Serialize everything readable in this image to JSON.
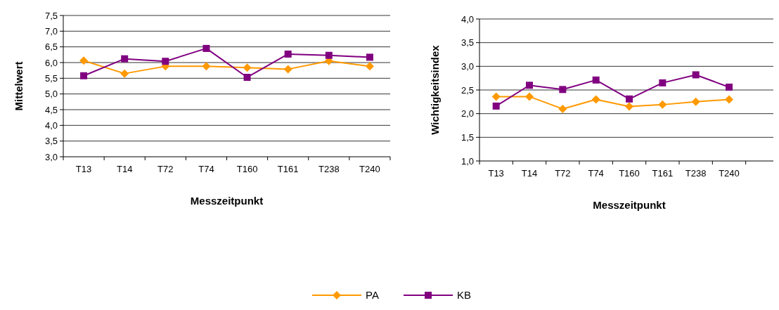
{
  "chart_data": [
    {
      "type": "line",
      "xlabel": "Messzeitpunkt",
      "ylabel": "Mittelwert",
      "categories": [
        "T13",
        "T14",
        "T72",
        "T74",
        "T160",
        "T161",
        "T238",
        "T240"
      ],
      "series": [
        {
          "name": "PA",
          "color": "#ff9900",
          "marker": "diamond",
          "values": [
            6.06,
            5.65,
            5.88,
            5.88,
            5.84,
            5.79,
            6.05,
            5.88
          ]
        },
        {
          "name": "KB",
          "color": "#800080",
          "marker": "square",
          "values": [
            5.58,
            6.12,
            6.04,
            6.45,
            5.53,
            6.27,
            6.23,
            6.17
          ]
        }
      ],
      "ylim": [
        3,
        7.5
      ],
      "yticks": [
        {
          "value": 3,
          "label": "3,0"
        },
        {
          "value": 3.5,
          "label": "3,5"
        },
        {
          "value": 4,
          "label": "4,0"
        },
        {
          "value": 4.5,
          "label": "4,5"
        },
        {
          "value": 5,
          "label": "5,0"
        },
        {
          "value": 5.5,
          "label": "5,5"
        },
        {
          "value": 6,
          "label": "6,0"
        },
        {
          "value": 6.5,
          "label": "6,5"
        },
        {
          "value": 7,
          "label": "7,0"
        },
        {
          "value": 7.5,
          "label": "7,5"
        }
      ],
      "grid": "y",
      "legend": "bottom"
    },
    {
      "type": "line",
      "xlabel": "Messzeitpunkt",
      "ylabel": "Wichtigkeitsindex",
      "categories": [
        "T13",
        "T14",
        "T72",
        "T74",
        "T160",
        "T161",
        "T238",
        "T240",
        null
      ],
      "series": [
        {
          "color": "#ff9900",
          "marker": "diamond",
          "values": [
            2.36,
            2.36,
            2.1,
            2.3,
            2.15,
            2.19,
            2.25,
            2.3,
            null
          ]
        },
        {
          "color": "#800080",
          "marker": "square",
          "values": [
            2.16,
            2.6,
            2.51,
            2.71,
            2.31,
            2.65,
            2.82,
            2.56,
            null
          ]
        }
      ],
      "ylim": [
        1,
        4
      ],
      "yticks": [
        {
          "value": 1,
          "label": "1,0"
        },
        {
          "value": 1.5,
          "label": "1,5"
        },
        {
          "value": 2,
          "label": "2,0"
        },
        {
          "value": 2.5,
          "label": "2,5"
        },
        {
          "value": 3,
          "label": "3,0"
        },
        {
          "value": 3.5,
          "label": "3,5"
        },
        {
          "value": 4,
          "label": "4,0"
        }
      ],
      "grid": "y"
    }
  ]
}
